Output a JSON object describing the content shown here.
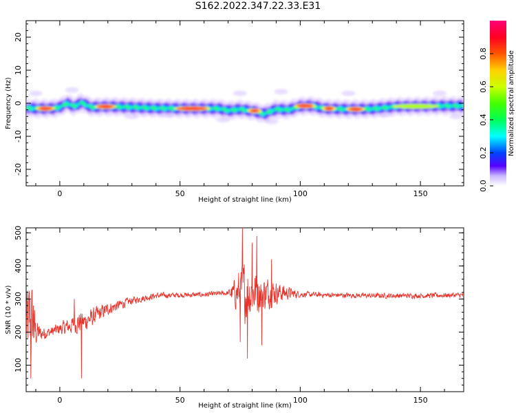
{
  "title": "S162.2022.347.22.33.E31",
  "chart_data": [
    {
      "type": "heatmap",
      "xlabel": "Height of straight line (km)",
      "ylabel": "Frequency (Hz)",
      "xlim": [
        -14,
        168
      ],
      "ylim": [
        -25,
        25
      ],
      "xticks": [
        0,
        50,
        100,
        150
      ],
      "yticks": [
        -20,
        -10,
        0,
        10,
        20
      ],
      "colorbar": {
        "label": "Normalized spectral amplitude",
        "range": [
          0,
          1
        ],
        "ticks": [
          "0.0",
          "0.2",
          "0.4",
          "0.6",
          "0.8"
        ],
        "colormap": "gist_rainbow_reversed"
      },
      "ridge_center_hz": [
        [
          -13,
          -1.5
        ],
        [
          -8,
          -1.6
        ],
        [
          -3,
          -1.6
        ],
        [
          0,
          -1.2
        ],
        [
          3,
          0.0
        ],
        [
          6,
          -1.0
        ],
        [
          9,
          0.2
        ],
        [
          13,
          -1.2
        ],
        [
          20,
          -1.0
        ],
        [
          30,
          -1.2
        ],
        [
          40,
          -1.5
        ],
        [
          55,
          -1.6
        ],
        [
          66,
          -1.6
        ],
        [
          70,
          -2.2
        ],
        [
          75,
          -1.8
        ],
        [
          80,
          -2.3
        ],
        [
          85,
          -3.2
        ],
        [
          90,
          -1.8
        ],
        [
          95,
          -2.0
        ],
        [
          100,
          -0.9
        ],
        [
          105,
          -0.8
        ],
        [
          110,
          -1.6
        ],
        [
          120,
          -1.8
        ],
        [
          130,
          -1.7
        ],
        [
          140,
          -1.0
        ],
        [
          150,
          -0.9
        ],
        [
          160,
          -0.8
        ],
        [
          167,
          -0.8
        ]
      ],
      "hotspots": [
        {
          "x": -6,
          "y": -1.6,
          "width_km": 5,
          "amplitude": 0.85
        },
        {
          "x": 19,
          "y": -1.0,
          "width_km": 6,
          "amplitude": 0.95
        },
        {
          "x": 55,
          "y": -1.6,
          "width_km": 12,
          "amplitude": 1.0
        },
        {
          "x": 102,
          "y": -0.8,
          "width_km": 6,
          "amplitude": 0.95
        },
        {
          "x": 112,
          "y": -1.6,
          "width_km": 3,
          "amplitude": 0.85
        },
        {
          "x": 123,
          "y": -1.8,
          "width_km": 5,
          "amplitude": 0.9
        },
        {
          "x": 81,
          "y": -2.3,
          "width_km": 3,
          "amplitude": 0.8
        },
        {
          "x": 148,
          "y": -0.9,
          "width_km": 16,
          "amplitude": 0.6
        }
      ]
    },
    {
      "type": "line",
      "xlabel": "Height of straight line (km)",
      "ylabel": "SNR (10 * v/v)",
      "xlim": [
        -14,
        168
      ],
      "ylim": [
        20,
        515
      ],
      "xticks": [
        0,
        50,
        100,
        150
      ],
      "yticks": [
        100,
        200,
        300,
        400,
        500
      ],
      "color": "#e8332b",
      "envelope": [
        [
          -14,
          220,
          140
        ],
        [
          -12,
          240,
          180
        ],
        [
          -10,
          200,
          60
        ],
        [
          -8,
          195,
          30
        ],
        [
          -4,
          200,
          20
        ],
        [
          0,
          210,
          25
        ],
        [
          5,
          220,
          35
        ],
        [
          8,
          230,
          45
        ],
        [
          10,
          230,
          40
        ],
        [
          15,
          250,
          35
        ],
        [
          20,
          270,
          25
        ],
        [
          30,
          295,
          15
        ],
        [
          40,
          310,
          12
        ],
        [
          50,
          312,
          10
        ],
        [
          60,
          313,
          10
        ],
        [
          70,
          318,
          10
        ],
        [
          73,
          318,
          60
        ],
        [
          76,
          320,
          130
        ],
        [
          80,
          320,
          95
        ],
        [
          85,
          318,
          70
        ],
        [
          90,
          320,
          45
        ],
        [
          95,
          318,
          25
        ],
        [
          100,
          314,
          12
        ],
        [
          110,
          312,
          10
        ],
        [
          130,
          310,
          10
        ],
        [
          150,
          310,
          10
        ],
        [
          168,
          312,
          10
        ]
      ],
      "extremes": [
        {
          "x": -12,
          "y": 60
        },
        {
          "x": -11,
          "y": 280
        },
        {
          "x": 9,
          "y": 60
        },
        {
          "x": 6,
          "y": 300
        },
        {
          "x": 76,
          "y": 515
        },
        {
          "x": 78,
          "y": 120
        },
        {
          "x": 82,
          "y": 490
        },
        {
          "x": 84,
          "y": 160
        },
        {
          "x": 80,
          "y": 470
        },
        {
          "x": 75,
          "y": 170
        },
        {
          "x": 88,
          "y": 420
        }
      ]
    }
  ]
}
